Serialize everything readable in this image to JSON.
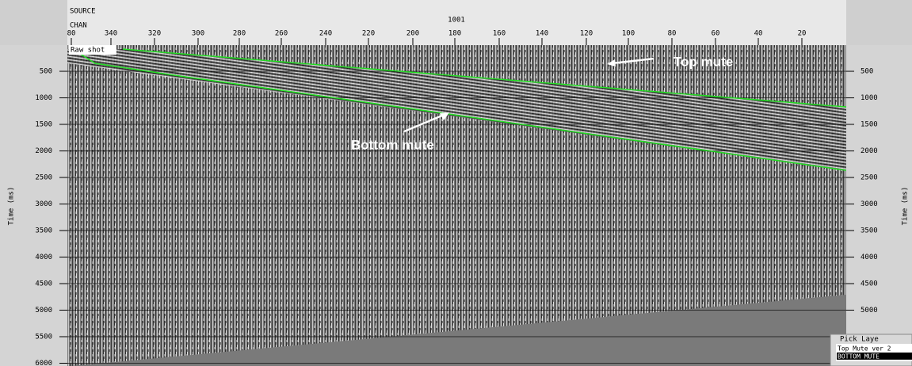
{
  "header": {
    "source_label": "SOURCE",
    "chan_label": "CHAN",
    "source_value": "1001",
    "channel_ticks": [
      "80",
      "340",
      "320",
      "300",
      "280",
      "260",
      "240",
      "220",
      "200",
      "180",
      "160",
      "140",
      "120",
      "100",
      "80",
      "60",
      "40",
      "20"
    ]
  },
  "left_axis": {
    "title": "Time (ms)",
    "ticks": [
      "500",
      "1000",
      "1500",
      "2000",
      "2500",
      "3000",
      "3500",
      "4000",
      "4500",
      "5000",
      "5500",
      "6000"
    ]
  },
  "right_axis": {
    "title": "Time (ms)",
    "ticks": [
      "500",
      "1000",
      "1500",
      "2000",
      "2500",
      "3000",
      "3500",
      "4000",
      "4500",
      "5000"
    ]
  },
  "annotations": {
    "raw_shot": "Raw shot",
    "top_mute": "Top mute",
    "bottom_mute": "Bottom mute"
  },
  "pick_panel": {
    "title": "Pick Laye",
    "items": [
      "Top Mute ver 2",
      "BOTTOM MUTE"
    ]
  }
}
